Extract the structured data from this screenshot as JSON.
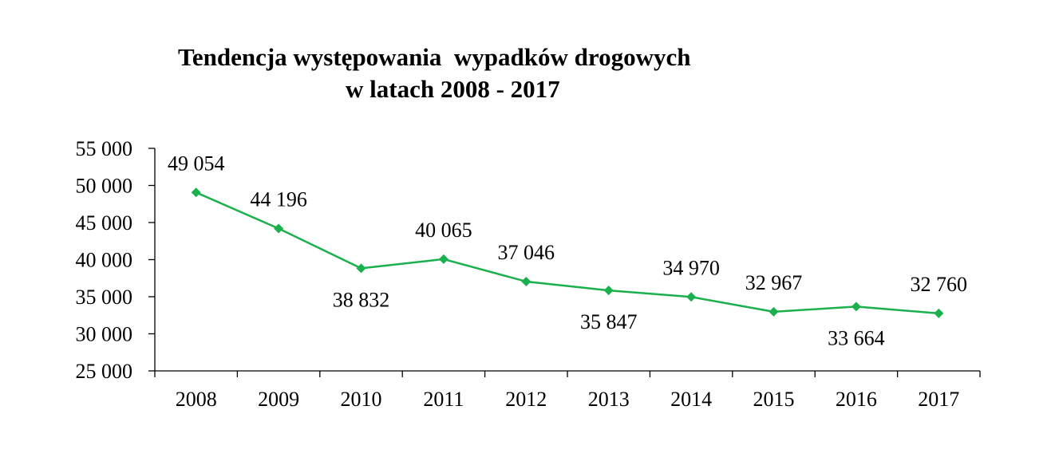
{
  "chart_data": {
    "type": "line",
    "title_line1": "Tendencja występowania  wypadków drogowych",
    "title_line2": "w latach 2008 - 2017",
    "xlabel": "",
    "ylabel": "",
    "categories": [
      "2008",
      "2009",
      "2010",
      "2011",
      "2012",
      "2013",
      "2014",
      "2015",
      "2016",
      "2017"
    ],
    "series": [
      {
        "values": [
          49054,
          44196,
          38832,
          40065,
          37046,
          35847,
          34970,
          32967,
          33664,
          32760
        ],
        "labels": [
          "49 054",
          "44 196",
          "38 832",
          "40 065",
          "37 046",
          "35 847",
          "34 970",
          "32 967",
          "33 664",
          "32 760"
        ],
        "label_positions": [
          "above",
          "above",
          "below",
          "above",
          "above",
          "below",
          "above",
          "above",
          "below",
          "above"
        ],
        "color": "#1ab04d",
        "marker": "diamond"
      }
    ],
    "ylim": [
      25000,
      55000
    ],
    "yticks": [
      25000,
      30000,
      35000,
      40000,
      45000,
      50000,
      55000
    ],
    "ytick_labels": [
      "25 000",
      "30 000",
      "35 000",
      "40 000",
      "45 000",
      "50 000",
      "55 000"
    ],
    "grid": false,
    "legend": "none"
  }
}
